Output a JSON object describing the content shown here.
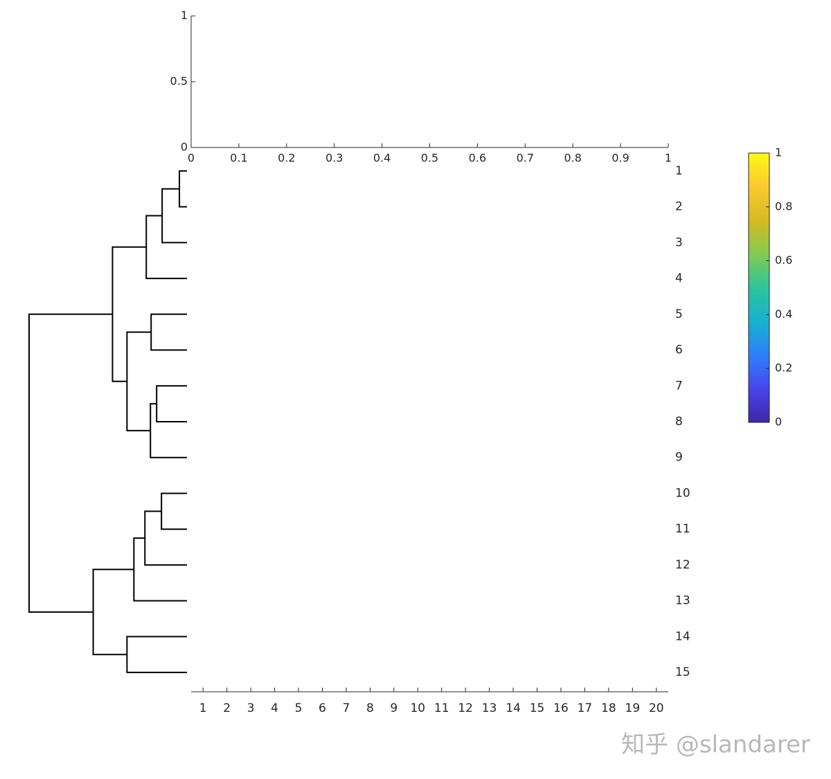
{
  "chart_data": {
    "type": "dendrogram-heatmap",
    "top_axes": {
      "xlim": [
        0,
        1
      ],
      "ylim": [
        0,
        1
      ],
      "xticks": [
        0,
        0.1,
        0.2,
        0.3,
        0.4,
        0.5,
        0.6,
        0.7,
        0.8,
        0.9,
        1
      ],
      "yticks": [
        0,
        0.5,
        1
      ]
    },
    "rows": [
      "1",
      "2",
      "3",
      "4",
      "5",
      "6",
      "7",
      "8",
      "9",
      "10",
      "11",
      "12",
      "13",
      "14",
      "15"
    ],
    "columns": [
      "1",
      "2",
      "3",
      "4",
      "5",
      "6",
      "7",
      "8",
      "9",
      "10",
      "11",
      "12",
      "13",
      "14",
      "15",
      "16",
      "17",
      "18",
      "19",
      "20"
    ],
    "dendrogram": {
      "hlim": [
        0,
        230
      ],
      "color": "#000000",
      "links": [
        {
          "children": [
            1,
            2
          ],
          "height": 11
        },
        {
          "children": [
            16,
            3
          ],
          "height": 36
        },
        {
          "children": [
            17,
            4
          ],
          "height": 59
        },
        {
          "children": [
            5,
            6
          ],
          "height": 52
        },
        {
          "children": [
            7,
            8
          ],
          "height": 44
        },
        {
          "children": [
            20,
            9
          ],
          "height": 53
        },
        {
          "children": [
            19,
            21
          ],
          "height": 87
        },
        {
          "children": [
            18,
            22
          ],
          "height": 108
        },
        {
          "children": [
            10,
            11
          ],
          "height": 37
        },
        {
          "children": [
            24,
            12
          ],
          "height": 61
        },
        {
          "children": [
            25,
            13
          ],
          "height": 77
        },
        {
          "children": [
            14,
            15
          ],
          "height": 87
        },
        {
          "children": [
            26,
            27
          ],
          "height": 136
        },
        {
          "children": [
            23,
            28
          ],
          "height": 229
        }
      ]
    },
    "colorbar": {
      "clim": [
        0,
        1
      ],
      "ticks": [
        0,
        0.2,
        0.4,
        0.6,
        0.8,
        1
      ],
      "colormap": [
        "#3e26a8",
        "#4746eb",
        "#2f80fa",
        "#17b1d0",
        "#2cc59b",
        "#83cb53",
        "#d5bb21",
        "#fcc831",
        "#f9fb15"
      ]
    },
    "watermark": "知乎 @slandarer"
  }
}
